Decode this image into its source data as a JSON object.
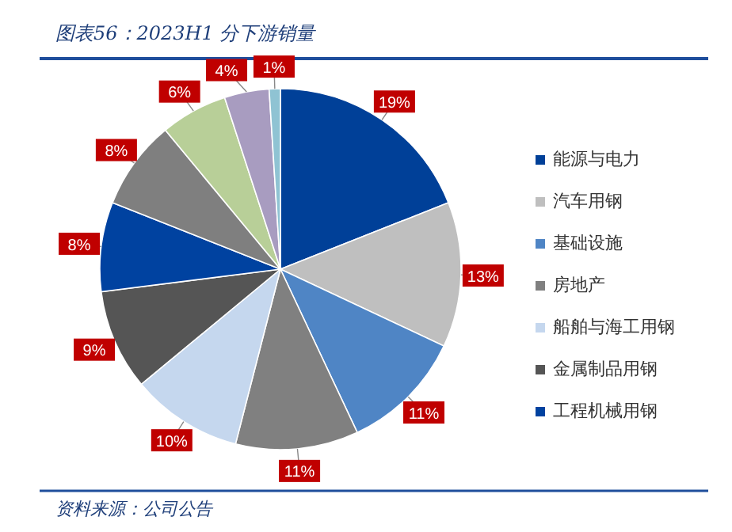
{
  "chart_data": {
    "type": "pie",
    "title": "图表56：2023H1 分下游销量",
    "categories": [
      "能源与电力",
      "汽车用钢",
      "基础设施",
      "房地产",
      "船舶与海工用钢",
      "金属制品用钢",
      "工程机械用钢",
      null,
      null,
      null,
      null
    ],
    "values": [
      19,
      13,
      11,
      11,
      10,
      9,
      8,
      8,
      6,
      4,
      1
    ],
    "colors": [
      "#004098",
      "#bfbfbf",
      "#4f85c5",
      "#808080",
      "#c5d7ee",
      "#555555",
      "#0042a0",
      "#7f7f7f",
      "#b8cf98",
      "#a89cc0",
      "#8fc3d3"
    ],
    "value_labels": [
      "19%",
      "13%",
      "11%",
      "11%",
      "10%",
      "9%",
      "8%",
      "8%",
      "6%",
      "4%",
      "1%"
    ],
    "legend": "right",
    "annotations": [
      "资料来源：公司公告"
    ]
  }
}
